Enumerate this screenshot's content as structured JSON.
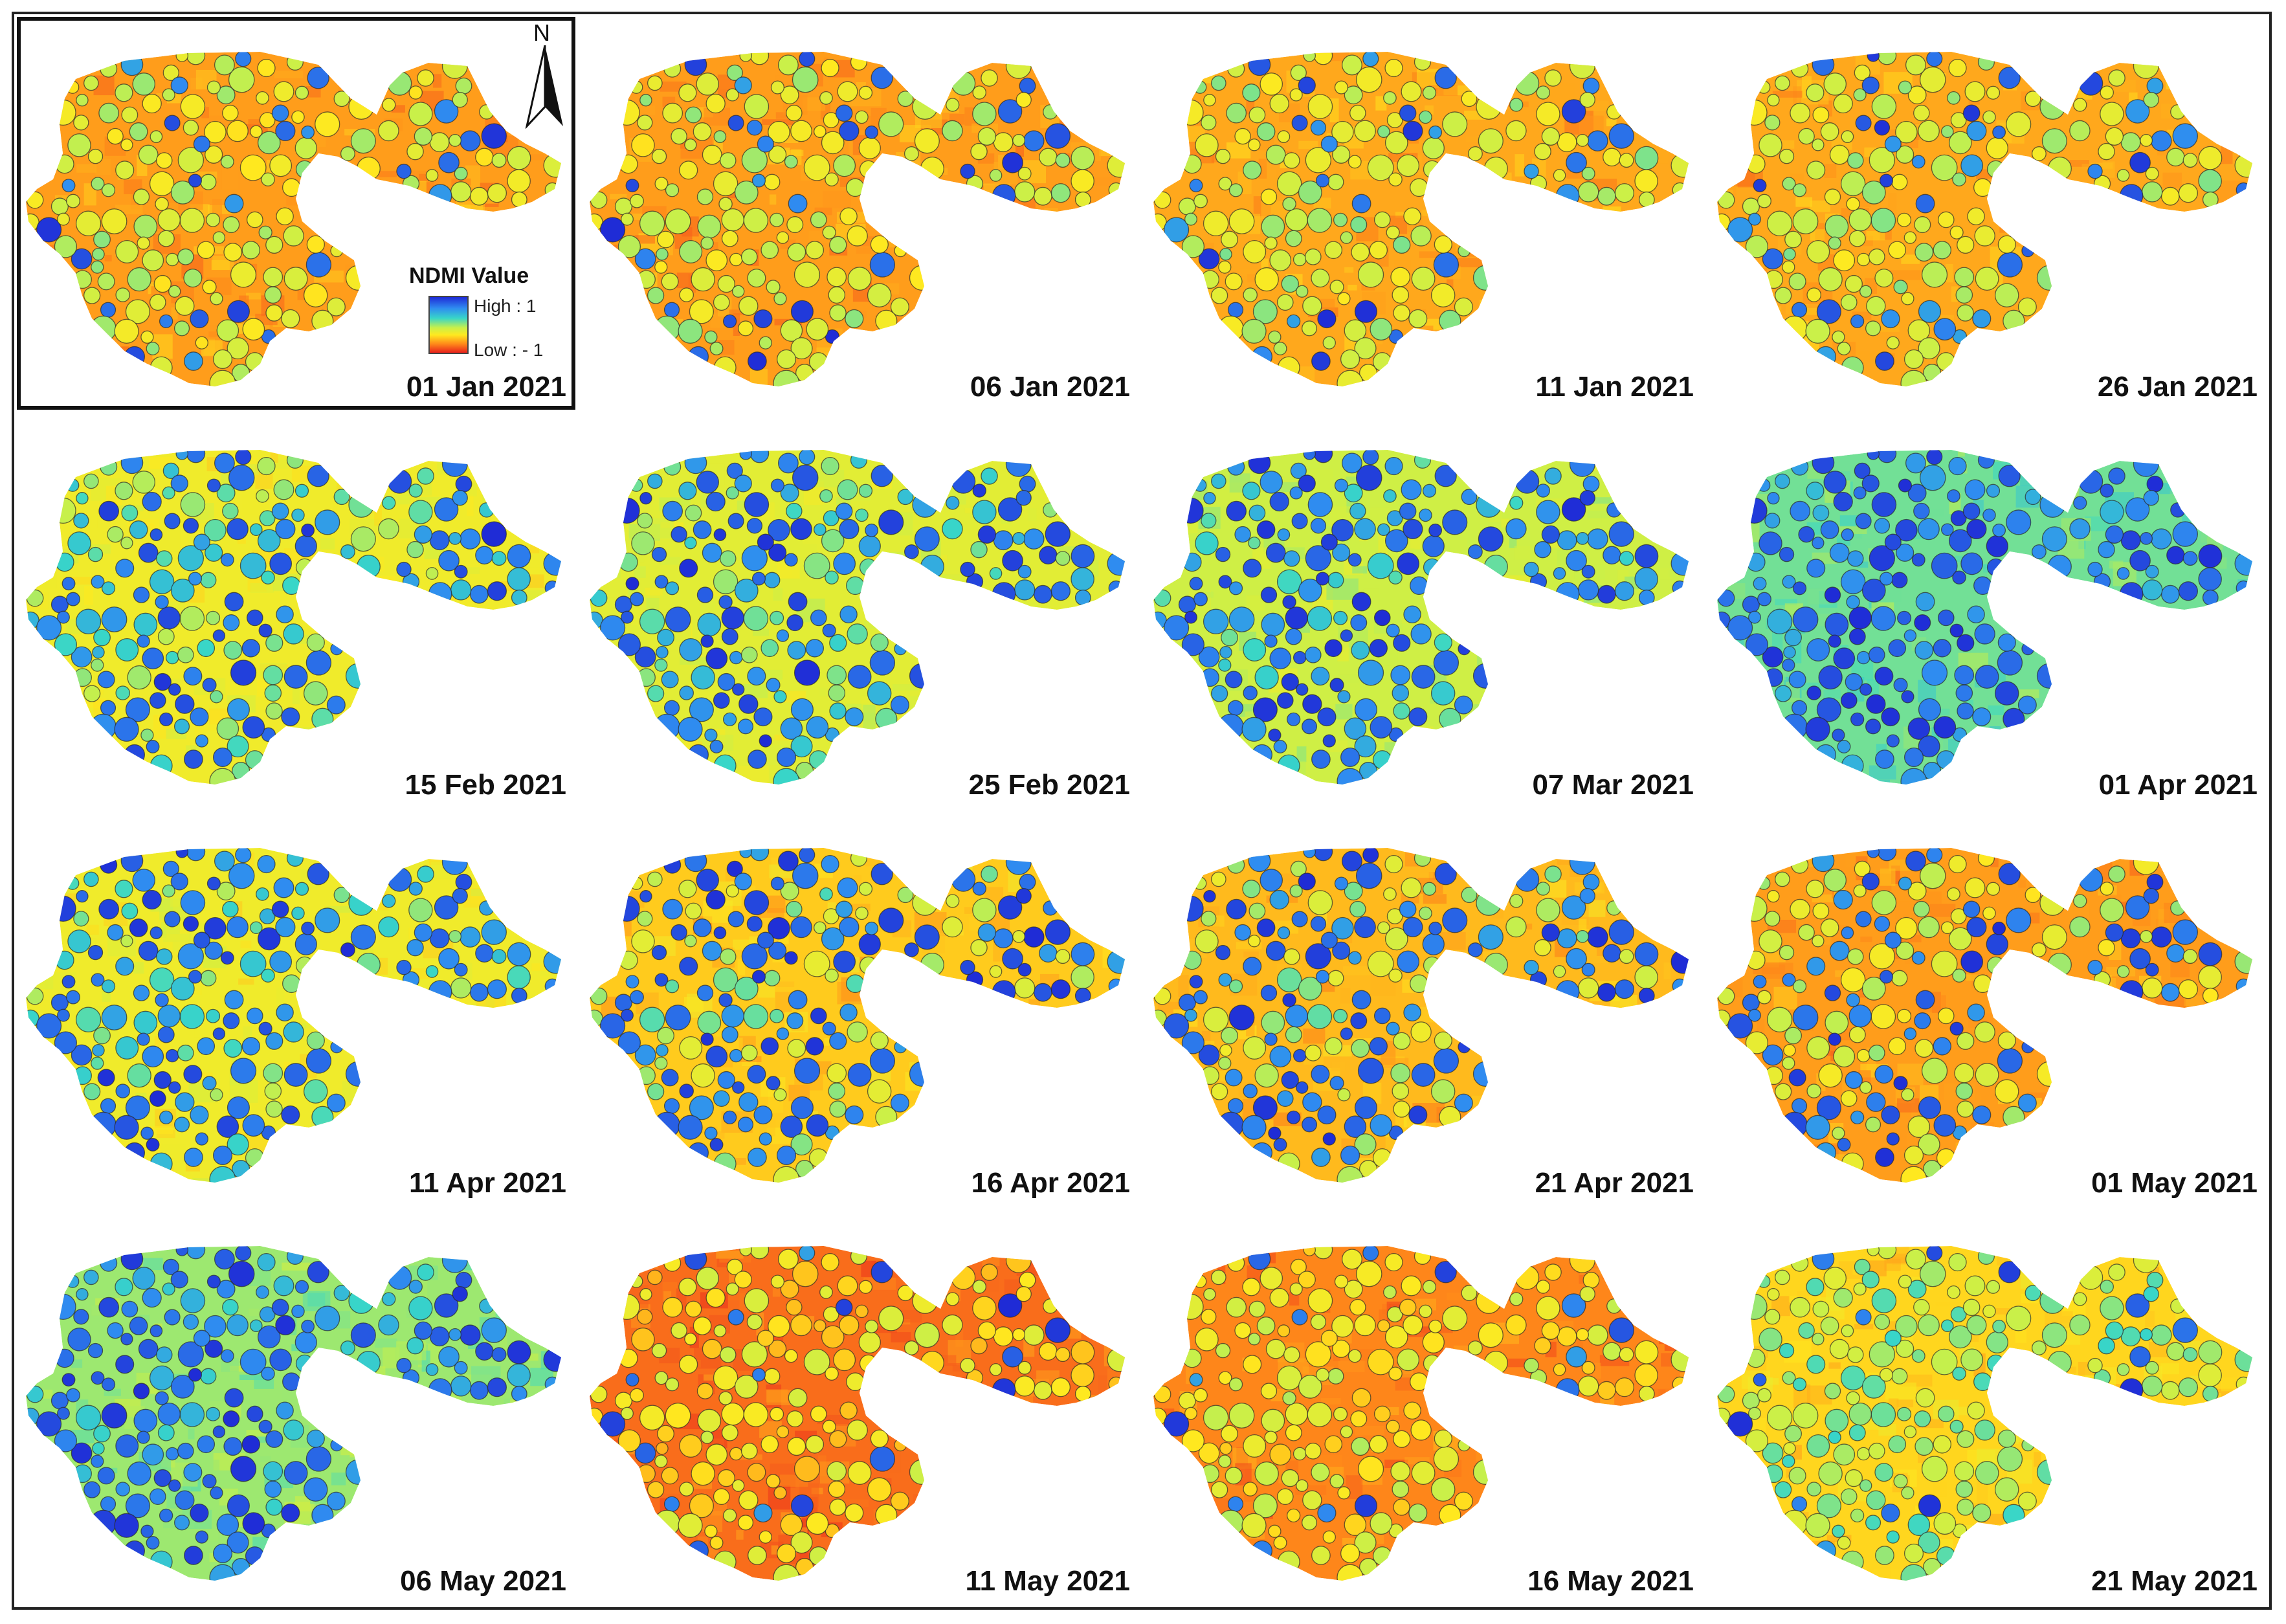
{
  "legend": {
    "title": "NDMI Value",
    "high_label": "High : 1",
    "low_label": "Low : - 1",
    "colors": [
      "#1f2bd6",
      "#2f8cf0",
      "#38d6c8",
      "#c8f04a",
      "#ffe91f",
      "#ff8a1a",
      "#e8221c"
    ]
  },
  "north_arrow": {
    "letter": "N"
  },
  "panels": [
    {
      "date": "01 Jan 2021",
      "wet": 0.15,
      "base": 0.8
    },
    {
      "date": "06 Jan 2021",
      "wet": 0.17,
      "base": 0.8
    },
    {
      "date": "11 Jan 2021",
      "wet": 0.17,
      "base": 0.78
    },
    {
      "date": "26 Jan 2021",
      "wet": 0.2,
      "base": 0.78
    },
    {
      "date": "15 Feb 2021",
      "wet": 0.5,
      "base": 0.62
    },
    {
      "date": "25 Feb 2021",
      "wet": 0.62,
      "base": 0.58
    },
    {
      "date": "07 Mar 2021",
      "wet": 0.7,
      "base": 0.52
    },
    {
      "date": "01 Apr 2021",
      "wet": 0.8,
      "base": 0.4
    },
    {
      "date": "11 Apr 2021",
      "wet": 0.7,
      "base": 0.62
    },
    {
      "date": "16 Apr 2021",
      "wet": 0.68,
      "base": 0.72
    },
    {
      "date": "21 Apr 2021",
      "wet": 0.6,
      "base": 0.75
    },
    {
      "date": "01 May 2021",
      "wet": 0.42,
      "base": 0.8
    },
    {
      "date": "06 May 2021",
      "wet": 0.55,
      "base": 0.45
    },
    {
      "date": "11 May 2021",
      "wet": 0.12,
      "base": 0.88
    },
    {
      "date": "16 May 2021",
      "wet": 0.1,
      "base": 0.84
    },
    {
      "date": "21 May 2021",
      "wet": 0.1,
      "base": 0.7
    }
  ]
}
